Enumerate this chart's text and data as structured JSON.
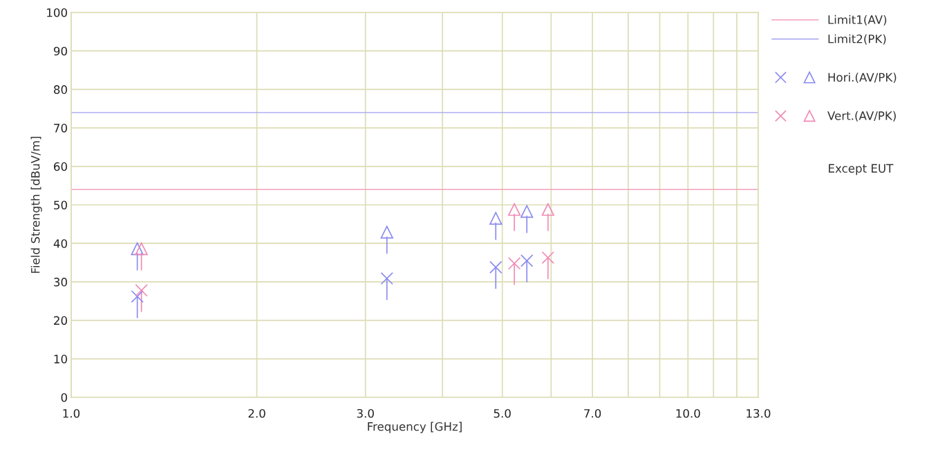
{
  "chart_data": {
    "type": "scatter",
    "xlabel": "Frequency [GHz]",
    "ylabel": "Field Strength [dBuV/m]",
    "log": "x",
    "xlim": [
      1.0,
      13.0
    ],
    "ylim": [
      0,
      100
    ],
    "xticks": [
      {
        "value": 1,
        "label": "1.0"
      },
      {
        "value": 2,
        "label": "2.0"
      },
      {
        "value": 3,
        "label": "3.0"
      },
      {
        "value": 4,
        "label": null
      },
      {
        "value": 5,
        "label": "5.0"
      },
      {
        "value": 6,
        "label": null
      },
      {
        "value": 7,
        "label": "7.0"
      },
      {
        "value": 8,
        "label": null
      },
      {
        "value": 9,
        "label": null
      },
      {
        "value": 10,
        "label": "10.0"
      },
      {
        "value": 11,
        "label": null
      },
      {
        "value": 12,
        "label": null
      },
      {
        "value": 13,
        "label": "13.0"
      }
    ],
    "yticks": [
      0,
      10,
      20,
      30,
      40,
      50,
      60,
      70,
      80,
      90,
      100
    ],
    "grid": true,
    "legend": "right",
    "series": [
      {
        "name": "Hori.(AV/PK)",
        "color": "#8a8af0",
        "marker": "cross",
        "x": [
          1.28,
          3.25,
          4.88,
          5.48
        ],
        "values": [
          26.2,
          30.9,
          33.8,
          35.5
        ]
      },
      {
        "color": "#8a8af0",
        "marker": "triangle",
        "x": [
          1.28,
          3.25,
          4.88,
          5.48
        ],
        "values": [
          38.6,
          42.9,
          46.5,
          48.3
        ]
      },
      {
        "name": "Vert.(AV/PK)",
        "color": "#f08ab4",
        "marker": "cross",
        "x": [
          1.3,
          5.23,
          5.93
        ],
        "values": [
          27.8,
          34.8,
          36.3
        ]
      },
      {
        "color": "#f08ab4",
        "marker": "triangle",
        "x": [
          1.3,
          5.23,
          5.93
        ],
        "values": [
          38.6,
          48.8,
          48.8
        ]
      }
    ],
    "ref_lines": [
      {
        "axis": "y",
        "value": 54,
        "label": "Limit1(AV)",
        "color": "#f4a0b8"
      },
      {
        "axis": "y",
        "value": 74,
        "label": "Limit2(PK)",
        "color": "#a0a0f0"
      }
    ],
    "annotations": [
      "Except EUT"
    ]
  }
}
